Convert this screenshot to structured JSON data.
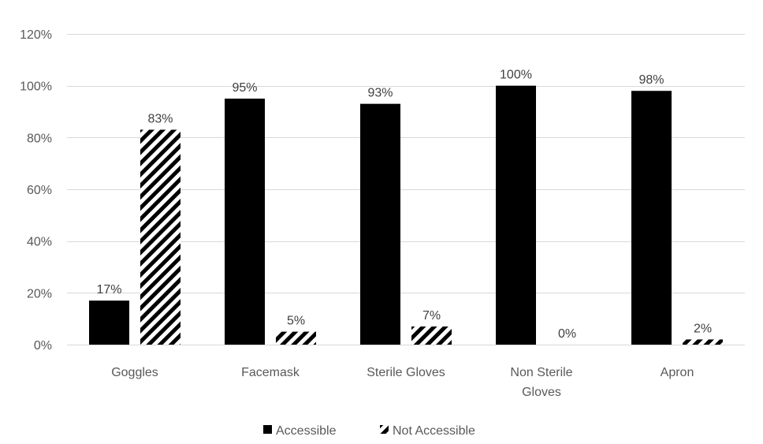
{
  "chart_data": {
    "type": "bar",
    "categories": [
      "Goggles",
      "Facemask",
      "Sterile Gloves",
      "Non Sterile Gloves",
      "Apron"
    ],
    "category_lines": [
      [
        "Goggles"
      ],
      [
        "Facemask"
      ],
      [
        "Sterile Gloves"
      ],
      [
        "Non Sterile",
        "Gloves"
      ],
      [
        "Apron"
      ]
    ],
    "series": [
      {
        "name": "Accessible",
        "values": [
          17,
          95,
          93,
          100,
          98
        ],
        "labels": [
          "17%",
          "95%",
          "93%",
          "100%",
          "98%"
        ],
        "fill": "solid",
        "color": "#000000"
      },
      {
        "name": "Not Accessible",
        "values": [
          83,
          5,
          7,
          0,
          2
        ],
        "labels": [
          "83%",
          "5%",
          "7%",
          "0%",
          "2%"
        ],
        "fill": "diagonal-hatch",
        "color": "#000000"
      }
    ],
    "y_ticks": [
      0,
      20,
      40,
      60,
      80,
      100,
      120
    ],
    "y_tick_labels": [
      "0%",
      "20%",
      "40%",
      "60%",
      "80%",
      "100%",
      "120%"
    ],
    "ylim": [
      0,
      120
    ],
    "grid": true,
    "legend_position": "bottom-center",
    "gridline_color": "#d9d9d9"
  }
}
